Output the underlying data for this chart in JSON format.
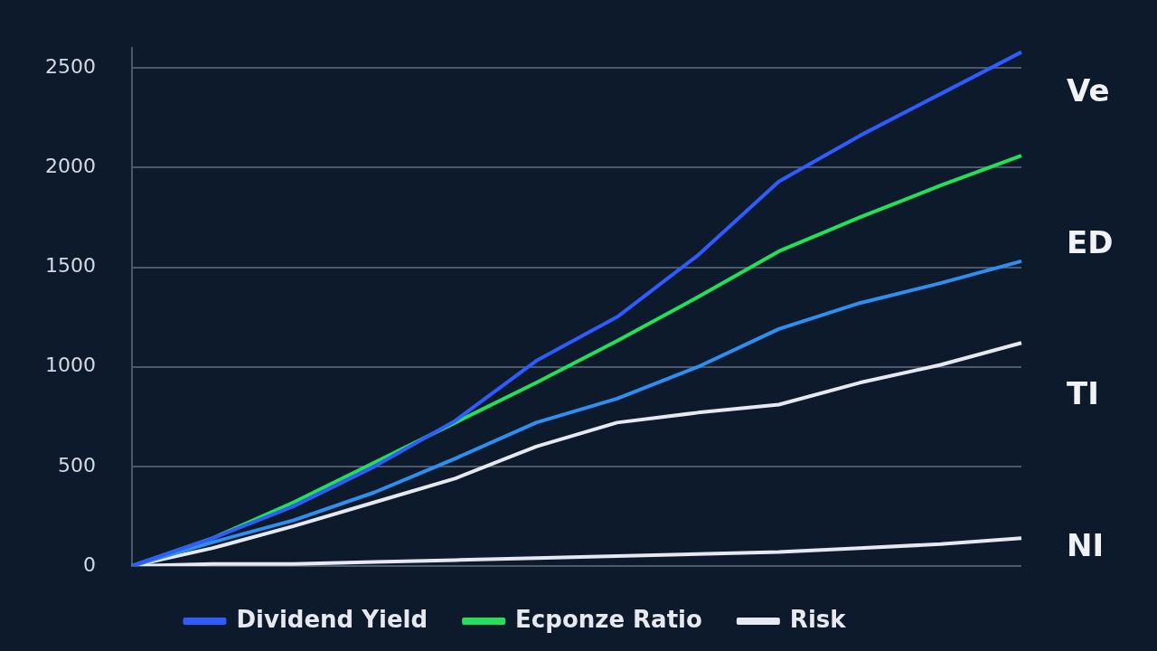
{
  "chart_data": {
    "type": "line",
    "categories": [
      null,
      null,
      null,
      null,
      null,
      null,
      null,
      null,
      null,
      null,
      null,
      null
    ],
    "series": [
      {
        "name": "Dividend Yield",
        "color": "#2f5bff",
        "values": [
          0,
          140,
          300,
          500,
          730,
          1030,
          1250,
          1560,
          1930,
          2160,
          2370,
          2580
        ]
      },
      {
        "name": "Ecponze Ratio",
        "color": "#22e05a",
        "values": [
          0,
          140,
          320,
          520,
          720,
          920,
          1130,
          1350,
          1580,
          1750,
          1910,
          2060
        ]
      },
      {
        "color": "#2f8ff0",
        "values": [
          0,
          120,
          230,
          370,
          540,
          720,
          840,
          1000,
          1190,
          1320,
          1420,
          1530
        ]
      },
      {
        "name": "Risk",
        "color": "#e6e9ef",
        "values": [
          0,
          90,
          200,
          320,
          440,
          600,
          720,
          770,
          810,
          920,
          1010,
          1120
        ]
      },
      {
        "color": "#e6e9ef",
        "values": [
          0,
          10,
          10,
          20,
          30,
          40,
          50,
          60,
          70,
          90,
          110,
          140
        ]
      }
    ],
    "ylim": [
      0,
      2600
    ],
    "yticks": [
      0,
      500,
      1000,
      1500,
      2000,
      2500
    ],
    "annotations": [
      "Ve",
      "ED",
      "TI",
      "NI"
    ],
    "grid": "y",
    "legend": "bottom",
    "marker": "none",
    "line_style": "solid"
  }
}
